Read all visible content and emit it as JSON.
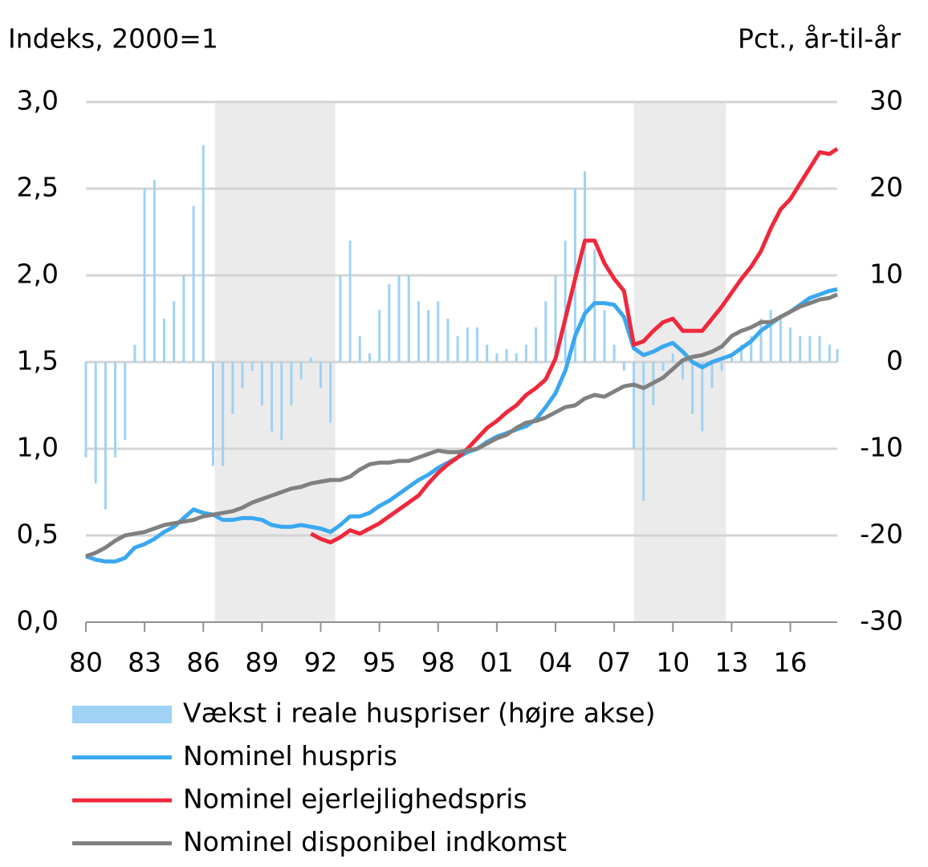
{
  "chart_data": {
    "type": "combo",
    "y_label": "Indeks, 2000=1",
    "y2_label": "Pct., år-til-år",
    "x": [
      1980,
      1980.5,
      1981,
      1981.5,
      1982,
      1982.5,
      1983,
      1983.5,
      1984,
      1984.5,
      1985,
      1985.5,
      1986,
      1986.5,
      1987,
      1987.5,
      1988,
      1988.5,
      1989,
      1989.5,
      1990,
      1990.5,
      1991,
      1991.5,
      1992,
      1992.5,
      1993,
      1993.5,
      1994,
      1994.5,
      1995,
      1995.5,
      1996,
      1996.5,
      1997,
      1997.5,
      1998,
      1998.5,
      1999,
      1999.5,
      2000,
      2000.5,
      2001,
      2001.5,
      2002,
      2002.5,
      2003,
      2003.5,
      2004,
      2004.5,
      2005,
      2005.5,
      2006,
      2006.5,
      2007,
      2007.5,
      2008,
      2008.5,
      2009,
      2009.5,
      2010,
      2010.5,
      2011,
      2011.5,
      2012,
      2012.5,
      2013,
      2013.5,
      2014,
      2014.5,
      2015,
      2015.5,
      2016,
      2016.5,
      2017,
      2017.5,
      2018,
      2018.4
    ],
    "xlim": [
      1980,
      2018.4
    ],
    "xticks": [
      {
        "value": 1980,
        "label": "80"
      },
      {
        "value": 1983,
        "label": "83"
      },
      {
        "value": 1986,
        "label": "86"
      },
      {
        "value": 1989,
        "label": "89"
      },
      {
        "value": 1992,
        "label": "92"
      },
      {
        "value": 1995,
        "label": "95"
      },
      {
        "value": 1998,
        "label": "98"
      },
      {
        "value": 2001,
        "label": "01"
      },
      {
        "value": 2004,
        "label": "04"
      },
      {
        "value": 2007,
        "label": "07"
      },
      {
        "value": 2010,
        "label": "10"
      },
      {
        "value": 2013,
        "label": "13"
      },
      {
        "value": 2016,
        "label": "16"
      }
    ],
    "ylim": [
      0,
      3
    ],
    "yticks": [
      {
        "value": 0,
        "label": "0,0"
      },
      {
        "value": 0.5,
        "label": "0,5"
      },
      {
        "value": 1,
        "label": "1,0"
      },
      {
        "value": 1.5,
        "label": "1,5"
      },
      {
        "value": 2,
        "label": "2,0"
      },
      {
        "value": 2.5,
        "label": "2,5"
      },
      {
        "value": 3,
        "label": "3,0"
      }
    ],
    "y2lim": [
      -30,
      30
    ],
    "y2ticks": [
      -30,
      -20,
      -10,
      0,
      10,
      20,
      30
    ],
    "grid": true,
    "shaded": [
      [
        1986.6,
        1992.75
      ],
      [
        2008,
        2012.7
      ]
    ],
    "shade_color": "#ebebeb",
    "legend": "bottom",
    "series": [
      {
        "name": "Vækst i reale huspriser (højre akse)",
        "type": "bar",
        "axis": "y2",
        "color": "#9fd2f4",
        "values": [
          -11,
          -14,
          -17,
          -11,
          -9,
          2,
          20,
          21,
          5,
          7,
          10,
          18,
          25,
          -12,
          -12,
          -6,
          -3,
          -1,
          -5,
          -8,
          -9,
          -5,
          -2,
          0.5,
          -3,
          -7,
          10,
          14,
          3,
          1,
          6,
          9,
          10,
          10,
          7,
          6,
          7,
          5,
          3,
          4,
          4,
          2,
          1,
          1.5,
          1,
          2,
          4,
          7,
          10,
          14,
          20,
          22,
          13,
          6,
          2,
          -1,
          -10,
          -16,
          -5,
          -1,
          1,
          -2,
          -6,
          -8,
          -3,
          -1,
          1,
          2,
          3,
          5,
          6,
          5,
          4,
          3,
          3,
          3,
          2,
          1.5
        ]
      },
      {
        "name": "Nominel huspris",
        "type": "line",
        "color": "#3aa8f0",
        "values": [
          0.38,
          0.36,
          0.35,
          0.35,
          0.37,
          0.43,
          0.45,
          0.48,
          0.52,
          0.55,
          0.6,
          0.65,
          0.63,
          0.62,
          0.59,
          0.59,
          0.6,
          0.6,
          0.59,
          0.56,
          0.55,
          0.55,
          0.56,
          0.55,
          0.54,
          0.52,
          0.56,
          0.61,
          0.61,
          0.63,
          0.67,
          0.7,
          0.74,
          0.78,
          0.82,
          0.85,
          0.89,
          0.92,
          0.95,
          0.98,
          1.0,
          1.04,
          1.07,
          1.09,
          1.11,
          1.13,
          1.17,
          1.24,
          1.32,
          1.45,
          1.65,
          1.78,
          1.84,
          1.84,
          1.83,
          1.76,
          1.58,
          1.54,
          1.56,
          1.59,
          1.61,
          1.56,
          1.5,
          1.47,
          1.5,
          1.52,
          1.54,
          1.58,
          1.62,
          1.68,
          1.72,
          1.76,
          1.79,
          1.83,
          1.87,
          1.89,
          1.91,
          1.92
        ]
      },
      {
        "name": "Nominel ejerlejlighedspris",
        "type": "line",
        "color": "#f0283c",
        "values": [
          null,
          null,
          null,
          null,
          null,
          null,
          null,
          null,
          null,
          null,
          null,
          null,
          null,
          null,
          null,
          null,
          null,
          null,
          null,
          null,
          null,
          null,
          null,
          0.51,
          0.48,
          0.46,
          0.49,
          0.53,
          0.51,
          0.54,
          0.57,
          0.61,
          0.65,
          0.69,
          0.73,
          0.8,
          0.86,
          0.91,
          0.95,
          1.0,
          1.06,
          1.12,
          1.16,
          1.21,
          1.25,
          1.31,
          1.35,
          1.4,
          1.52,
          1.75,
          1.98,
          2.2,
          2.2,
          2.07,
          1.98,
          1.91,
          1.6,
          1.62,
          1.68,
          1.73,
          1.75,
          1.68,
          1.68,
          1.68,
          1.75,
          1.82,
          1.9,
          1.98,
          2.05,
          2.14,
          2.27,
          2.38,
          2.44,
          2.53,
          2.62,
          2.71,
          2.7,
          2.73
        ]
      },
      {
        "name": "Nominel disponibel indkomst",
        "type": "line",
        "color": "#808080",
        "values": [
          0.38,
          0.4,
          0.43,
          0.47,
          0.5,
          0.51,
          0.52,
          0.54,
          0.56,
          0.57,
          0.58,
          0.59,
          0.61,
          0.62,
          0.63,
          0.64,
          0.66,
          0.69,
          0.71,
          0.73,
          0.75,
          0.77,
          0.78,
          0.8,
          0.81,
          0.82,
          0.82,
          0.84,
          0.88,
          0.91,
          0.92,
          0.92,
          0.93,
          0.93,
          0.95,
          0.97,
          0.99,
          0.98,
          0.98,
          0.99,
          1.0,
          1.03,
          1.06,
          1.08,
          1.12,
          1.15,
          1.16,
          1.18,
          1.21,
          1.24,
          1.25,
          1.29,
          1.31,
          1.3,
          1.33,
          1.36,
          1.37,
          1.35,
          1.38,
          1.41,
          1.46,
          1.51,
          1.53,
          1.54,
          1.56,
          1.59,
          1.65,
          1.68,
          1.7,
          1.73,
          1.73,
          1.76,
          1.79,
          1.82,
          1.84,
          1.86,
          1.87,
          1.89
        ]
      }
    ]
  }
}
